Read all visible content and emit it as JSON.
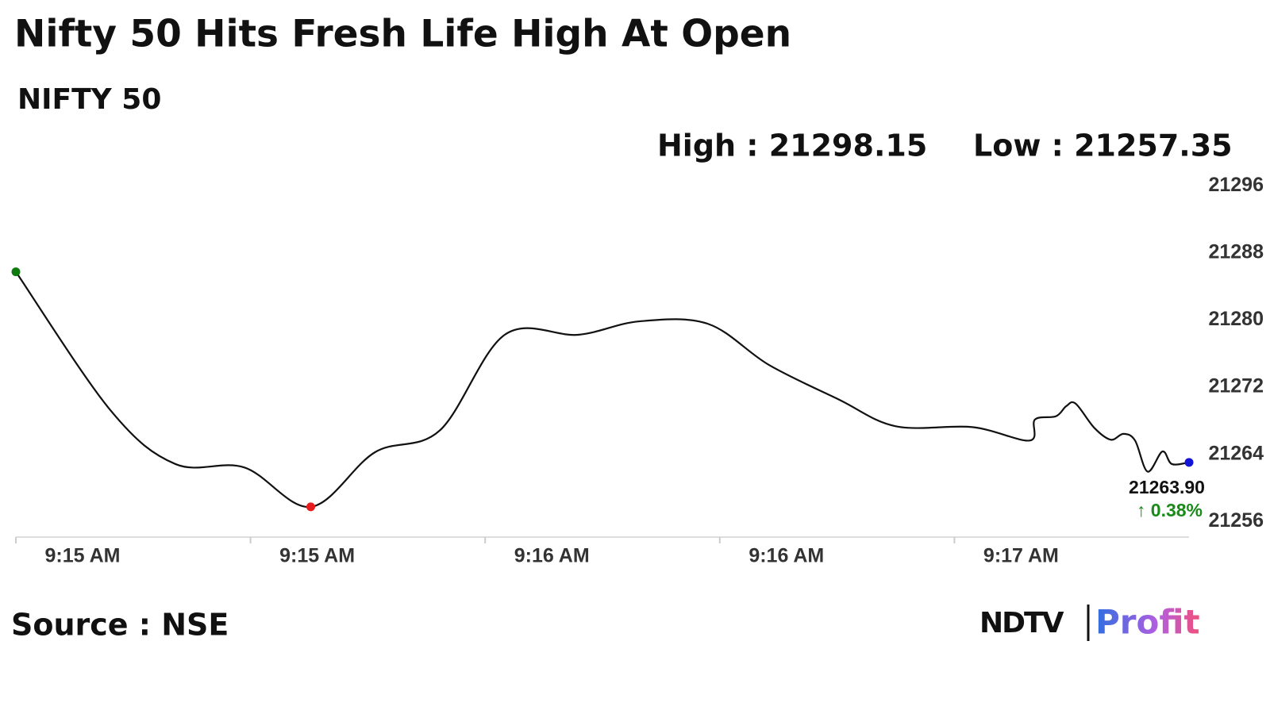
{
  "chart_data": {
    "type": "line",
    "title": "Nifty 50 Hits Fresh Life High At Open",
    "subtitle": "NIFTY 50",
    "high_text": "High : 21298.15",
    "low_text": "Low : 21257.35",
    "source": "Source : NSE",
    "logo": {
      "brand": "NDTV",
      "product": "Profit"
    },
    "last_label": "21263.90",
    "change_label": "↑ 0.38%",
    "change_color": "#1a8a1a",
    "color": "#111111",
    "marker_colors": {
      "start": "#0f7a0f",
      "min": "#e81c1c",
      "last": "#1414d6"
    },
    "x": [
      0,
      12.1,
      20.4,
      29.2,
      37.7,
      45.9,
      54.2,
      62.5,
      71.9,
      79.7,
      88.5,
      96.3,
      105.2,
      112.5,
      122.3,
      129.6,
      130.3,
      133.0,
      134.3,
      135.5,
      137.9,
      140.0,
      141.6,
      143.1,
      144.7,
      146.6,
      147.8,
      150
    ],
    "series": [
      {
        "name": "NIFTY 50",
        "values": [
          21286.6,
          21270.1,
          21263.7,
          21263.3,
          21258.6,
          21265.1,
          21267.7,
          21279.1,
          21279.1,
          21280.7,
          21280.4,
          21275.5,
          21271.4,
          21268.2,
          21268.1,
          21266.5,
          21269.0,
          21269.4,
          21270.6,
          21270.9,
          21268.0,
          21266.6,
          21267.3,
          21266.5,
          21262.8,
          21265.2,
          21263.7,
          21263.9
        ]
      }
    ],
    "xlim": [
      0,
      150
    ],
    "xticks": [
      {
        "value": 0,
        "label": "9:15 AM"
      },
      {
        "value": 30,
        "label": "9:15 AM"
      },
      {
        "value": 60,
        "label": "9:16 AM"
      },
      {
        "value": 90,
        "label": "9:16 AM"
      },
      {
        "value": 120,
        "label": "9:17 AM"
      }
    ],
    "ylim": [
      21255,
      21298
    ],
    "yticks": [
      21256,
      21264,
      21272,
      21280,
      21288,
      21296
    ],
    "grid": false
  }
}
